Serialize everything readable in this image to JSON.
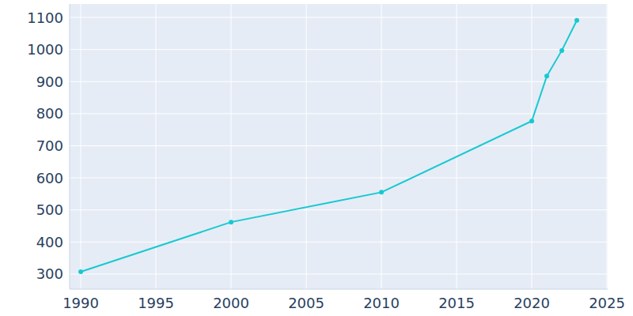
{
  "chart_data": {
    "type": "line",
    "x": [
      1990,
      2000,
      2010,
      2020,
      2021,
      2022,
      2023
    ],
    "values": [
      307,
      462,
      555,
      777,
      917,
      997,
      1091
    ],
    "color": "#17c9d0",
    "marker": "circle",
    "xlim": [
      1989.26,
      2025.05
    ],
    "ylim": [
      253,
      1142
    ],
    "xticks": [
      1990,
      1995,
      2000,
      2005,
      2010,
      2015,
      2020,
      2025
    ],
    "yticks": [
      300,
      400,
      500,
      600,
      700,
      800,
      900,
      1000,
      1100
    ],
    "grid": true
  }
}
